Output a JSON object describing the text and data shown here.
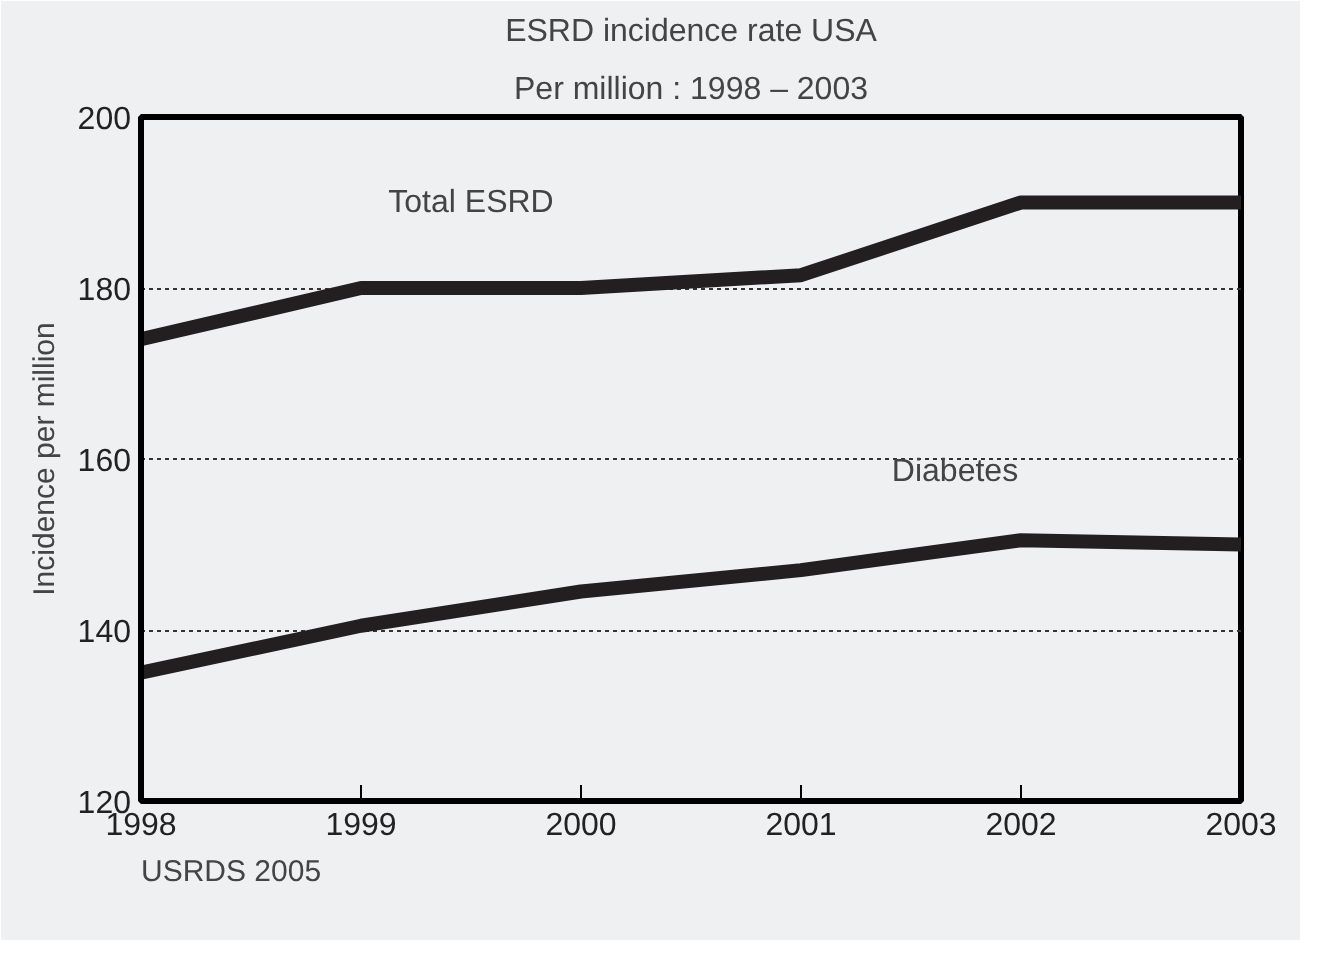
{
  "chart_data": {
    "type": "line",
    "title": "ESRD incidence rate USA",
    "subtitle": "Per million : 1998 – 2003",
    "ylabel": "Incidence per million",
    "x": [
      1998,
      1999,
      2000,
      2001,
      2002,
      2003
    ],
    "series": [
      {
        "name": "Total ESRD",
        "color": "#231f20",
        "values": [
          174,
          180,
          180,
          181.5,
          190,
          190
        ]
      },
      {
        "name": "Diabetes",
        "color": "#231f20",
        "values": [
          135,
          140.5,
          144.5,
          147,
          150.5,
          150
        ]
      }
    ],
    "xlim": [
      1998,
      2003
    ],
    "xticks": [
      1998,
      1999,
      2000,
      2001,
      2002,
      2003
    ],
    "ylim": [
      120,
      200
    ],
    "yticks": [
      120,
      140,
      160,
      180,
      200
    ],
    "grid": "y",
    "legend": false,
    "marker": "none",
    "line_style": "solid",
    "annotations": [
      "USRDS 2005"
    ]
  }
}
